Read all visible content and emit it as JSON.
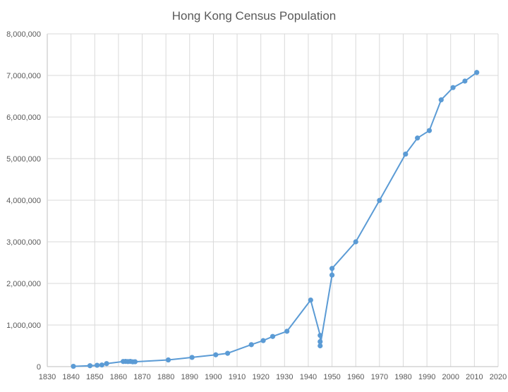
{
  "chart_data": {
    "type": "scatter",
    "title": "Hong Kong Census Population",
    "xlabel": "",
    "ylabel": "",
    "xlim": [
      1830,
      2020
    ],
    "ylim": [
      0,
      8000000
    ],
    "x_ticks": [
      "1830",
      "1840",
      "1850",
      "1860",
      "1870",
      "1880",
      "1890",
      "1900",
      "1910",
      "1920",
      "1930",
      "1940",
      "1950",
      "1960",
      "1970",
      "1980",
      "1990",
      "2000",
      "2010",
      "2020"
    ],
    "y_ticks": [
      "0",
      "1,000,000",
      "2,000,000",
      "3,000,000",
      "4,000,000",
      "5,000,000",
      "6,000,000",
      "7,000,000",
      "8,000,000"
    ],
    "grid": true,
    "legend": "none",
    "series": [
      {
        "color": "#5b9bd5",
        "points": [
          [
            1841,
            7450
          ],
          [
            1848,
            21514
          ],
          [
            1851,
            32983
          ],
          [
            1853,
            39017
          ],
          [
            1855,
            72607
          ],
          [
            1862,
            123511
          ],
          [
            1863,
            124850
          ],
          [
            1864,
            121498
          ],
          [
            1865,
            125504
          ],
          [
            1866,
            115098
          ],
          [
            1867,
            117471
          ],
          [
            1881,
            160402
          ],
          [
            1891,
            221441
          ],
          [
            1901,
            283978
          ],
          [
            1906,
            319803
          ],
          [
            1916,
            528010
          ],
          [
            1921,
            625166
          ],
          [
            1925,
            725000
          ],
          [
            1931,
            849751
          ],
          [
            1941,
            1600000
          ],
          [
            1945,
            750000
          ],
          [
            1945,
            600000
          ],
          [
            1945,
            500000
          ],
          [
            1950,
            2200000
          ],
          [
            1950,
            2360000
          ],
          [
            1960,
            3000000
          ],
          [
            1970,
            3995400
          ],
          [
            1981,
            5109800
          ],
          [
            1986,
            5495500
          ],
          [
            1991,
            5674100
          ],
          [
            1996,
            6412900
          ],
          [
            2001,
            6708400
          ],
          [
            2006,
            6864300
          ],
          [
            2011,
            7071600
          ]
        ]
      }
    ]
  }
}
